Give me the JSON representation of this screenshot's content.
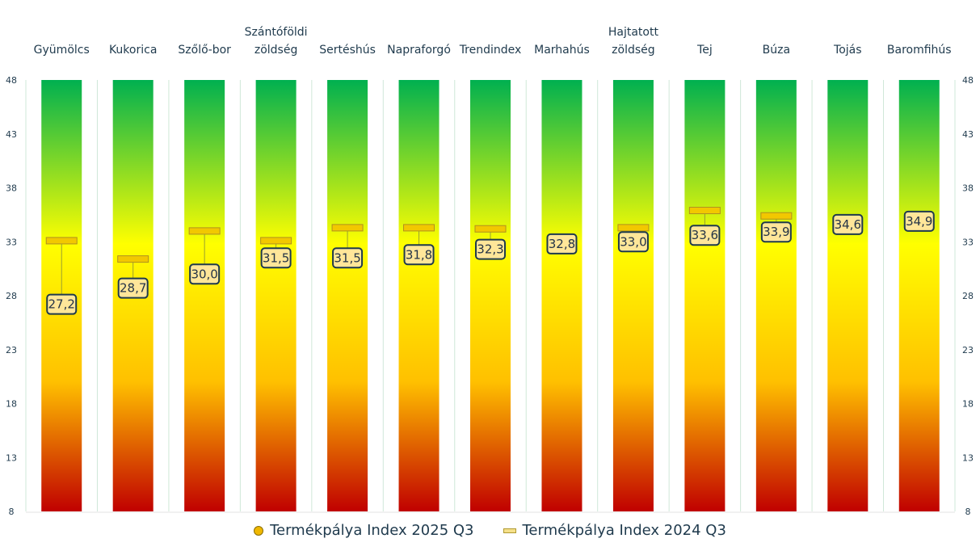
{
  "chart_data": {
    "type": "bar",
    "title": "",
    "xlabel": "",
    "ylabel": "",
    "ylim": [
      8,
      48
    ],
    "yticks": [
      8,
      13,
      18,
      23,
      28,
      33,
      38,
      43,
      48
    ],
    "y_axis_both_sides": true,
    "categories": [
      "Gyümölcs",
      "Kukorica",
      "Szőlő-bor",
      "Szántóföldi zöldség",
      "Sertéshús",
      "Napraforgó",
      "Trendindex",
      "Marhahús",
      "Hajtatott zöldség",
      "Tej",
      "Búza",
      "Tojás",
      "Baromfihús"
    ],
    "category_lines": [
      [
        "Gyümölcs"
      ],
      [
        "Kukorica"
      ],
      [
        "Szőlő-bor"
      ],
      [
        "Szántóföldi",
        "zöldség"
      ],
      [
        "Sertéshús"
      ],
      [
        "Napraforgó"
      ],
      [
        "Trendindex"
      ],
      [
        "Marhahús"
      ],
      [
        "Hajtatott",
        "zöldség"
      ],
      [
        "Tej"
      ],
      [
        "Búza"
      ],
      [
        "Tojás"
      ],
      [
        "Baromfihús"
      ]
    ],
    "background_scale": {
      "description": "gradient column from red (low) through yellow to green (high)",
      "colors": [
        "#c00000",
        "#ffc000",
        "#ffff00",
        "#00b050"
      ]
    },
    "series": [
      {
        "name": "Termékpálya Index 2025 Q3",
        "marker": "dot",
        "color": "#f0b800",
        "values": [
          27.2,
          28.7,
          30.0,
          31.5,
          31.5,
          31.8,
          32.3,
          32.8,
          33.0,
          33.6,
          33.9,
          34.6,
          34.9
        ],
        "labels": [
          "27,2",
          "28,7",
          "30,0",
          "31,5",
          "31,5",
          "31,8",
          "32,3",
          "32,8",
          "33,0",
          "33,6",
          "33,9",
          "34,6",
          "34,9"
        ]
      },
      {
        "name": "Termékpálya Index 2024 Q3",
        "marker": "dash",
        "color": "#f0c800",
        "values": [
          33.1,
          31.4,
          34.0,
          33.1,
          34.3,
          34.3,
          34.2,
          null,
          34.3,
          35.9,
          35.4,
          null,
          null
        ]
      }
    ],
    "legend": {
      "position": "bottom",
      "entries": [
        "Termékpálya Index 2025 Q3",
        "Termékpálya Index 2024 Q3"
      ]
    }
  }
}
